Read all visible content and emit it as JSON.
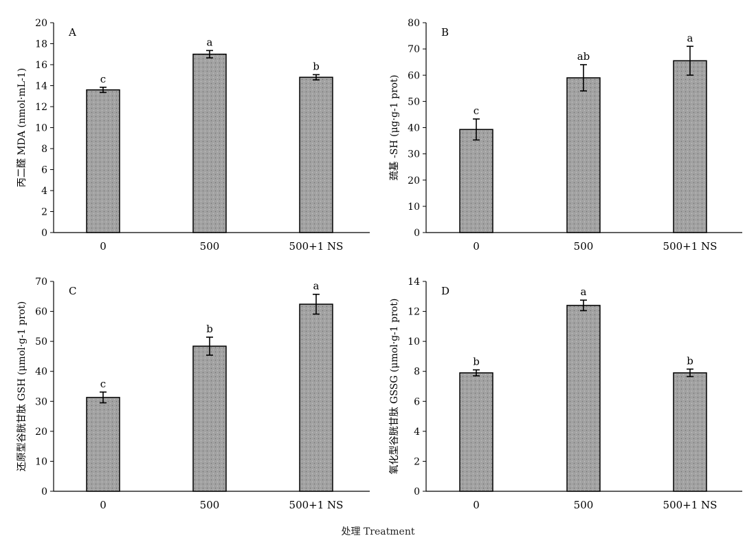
{
  "figure": {
    "xlabel": "处理 Treatment"
  },
  "chart_data": [
    {
      "type": "bar",
      "panel": "A",
      "ylabel": "丙二醛 MDA (nmol·mL-1)",
      "categories": [
        "0",
        "500",
        "500+1 NS"
      ],
      "values": [
        13.6,
        17.0,
        14.8
      ],
      "errors": [
        0.25,
        0.35,
        0.25
      ],
      "letters": [
        "c",
        "a",
        "b"
      ],
      "ylim": [
        0,
        20
      ],
      "yticks": [
        0,
        2,
        4,
        6,
        8,
        10,
        12,
        14,
        16,
        18,
        20
      ]
    },
    {
      "type": "bar",
      "panel": "B",
      "ylabel": "巯基 -SH (μg·g-1 prot)",
      "categories": [
        "0",
        "500",
        "500+1 NS"
      ],
      "values": [
        39.3,
        59.0,
        65.5
      ],
      "errors": [
        4.0,
        5.0,
        5.5
      ],
      "letters": [
        "c",
        "ab",
        "a"
      ],
      "ylim": [
        0,
        80
      ],
      "yticks": [
        0,
        10,
        20,
        30,
        40,
        50,
        60,
        70,
        80
      ]
    },
    {
      "type": "bar",
      "panel": "C",
      "ylabel": "还原型谷胱甘肽 GSH (μmol·g-1 prot)",
      "categories": [
        "0",
        "500",
        "500+1 NS"
      ],
      "values": [
        31.3,
        48.4,
        62.4
      ],
      "errors": [
        1.8,
        3.0,
        3.3
      ],
      "letters": [
        "c",
        "b",
        "a"
      ],
      "ylim": [
        0,
        70
      ],
      "yticks": [
        0,
        10,
        20,
        30,
        40,
        50,
        60,
        70
      ]
    },
    {
      "type": "bar",
      "panel": "D",
      "ylabel": "氧化型谷胱甘肽 GSSG (μmol·g-1 prot)",
      "categories": [
        "0",
        "500",
        "500+1 NS"
      ],
      "values": [
        7.9,
        12.4,
        7.9
      ],
      "errors": [
        0.2,
        0.35,
        0.25
      ],
      "letters": [
        "b",
        "a",
        "b"
      ],
      "ylim": [
        0,
        14
      ],
      "yticks": [
        0,
        2,
        4,
        6,
        8,
        10,
        12,
        14
      ]
    }
  ]
}
